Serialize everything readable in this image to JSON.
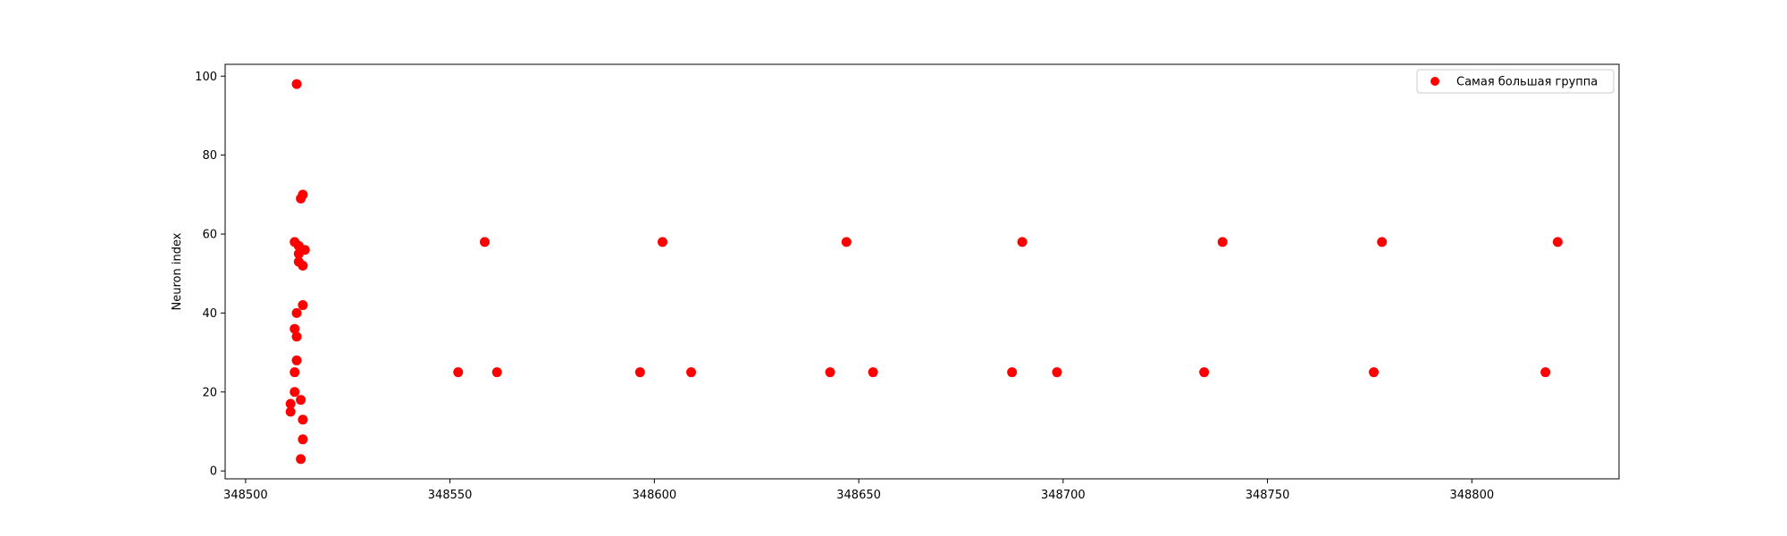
{
  "chart_data": {
    "type": "scatter",
    "title": "",
    "xlabel": "",
    "ylabel": "Neuron index",
    "xlim": [
      348495,
      348836
    ],
    "ylim": [
      -2,
      103
    ],
    "xticks": [
      348500,
      348550,
      348600,
      348650,
      348700,
      348750,
      348800
    ],
    "yticks": [
      0,
      20,
      40,
      60,
      80,
      100
    ],
    "grid": false,
    "legend_position": "top-right",
    "series": [
      {
        "name": "Самая большая группа",
        "color": "#ff0000",
        "points": [
          {
            "x": 348512.5,
            "y": 98
          },
          {
            "x": 348514.0,
            "y": 70
          },
          {
            "x": 348513.5,
            "y": 69
          },
          {
            "x": 348512.0,
            "y": 58
          },
          {
            "x": 348513.0,
            "y": 57
          },
          {
            "x": 348514.5,
            "y": 56
          },
          {
            "x": 348513.0,
            "y": 55
          },
          {
            "x": 348513.0,
            "y": 53
          },
          {
            "x": 348514.0,
            "y": 52
          },
          {
            "x": 348514.0,
            "y": 42
          },
          {
            "x": 348512.5,
            "y": 40
          },
          {
            "x": 348512.0,
            "y": 36
          },
          {
            "x": 348512.5,
            "y": 34
          },
          {
            "x": 348512.5,
            "y": 28
          },
          {
            "x": 348512.0,
            "y": 25
          },
          {
            "x": 348512.0,
            "y": 20
          },
          {
            "x": 348513.5,
            "y": 18
          },
          {
            "x": 348511.0,
            "y": 17
          },
          {
            "x": 348511.0,
            "y": 15
          },
          {
            "x": 348514.0,
            "y": 13
          },
          {
            "x": 348514.0,
            "y": 8
          },
          {
            "x": 348513.5,
            "y": 3
          },
          {
            "x": 348552.0,
            "y": 25
          },
          {
            "x": 348558.5,
            "y": 58
          },
          {
            "x": 348561.5,
            "y": 25
          },
          {
            "x": 348596.5,
            "y": 25
          },
          {
            "x": 348602.0,
            "y": 58
          },
          {
            "x": 348609.0,
            "y": 25
          },
          {
            "x": 348643.0,
            "y": 25
          },
          {
            "x": 348647.0,
            "y": 58
          },
          {
            "x": 348653.5,
            "y": 25
          },
          {
            "x": 348687.5,
            "y": 25
          },
          {
            "x": 348690.0,
            "y": 58
          },
          {
            "x": 348698.5,
            "y": 25
          },
          {
            "x": 348734.5,
            "y": 25
          },
          {
            "x": 348739.0,
            "y": 58
          },
          {
            "x": 348776.0,
            "y": 25
          },
          {
            "x": 348778.0,
            "y": 58
          },
          {
            "x": 348818.0,
            "y": 25
          },
          {
            "x": 348821.0,
            "y": 58
          }
        ]
      }
    ]
  }
}
